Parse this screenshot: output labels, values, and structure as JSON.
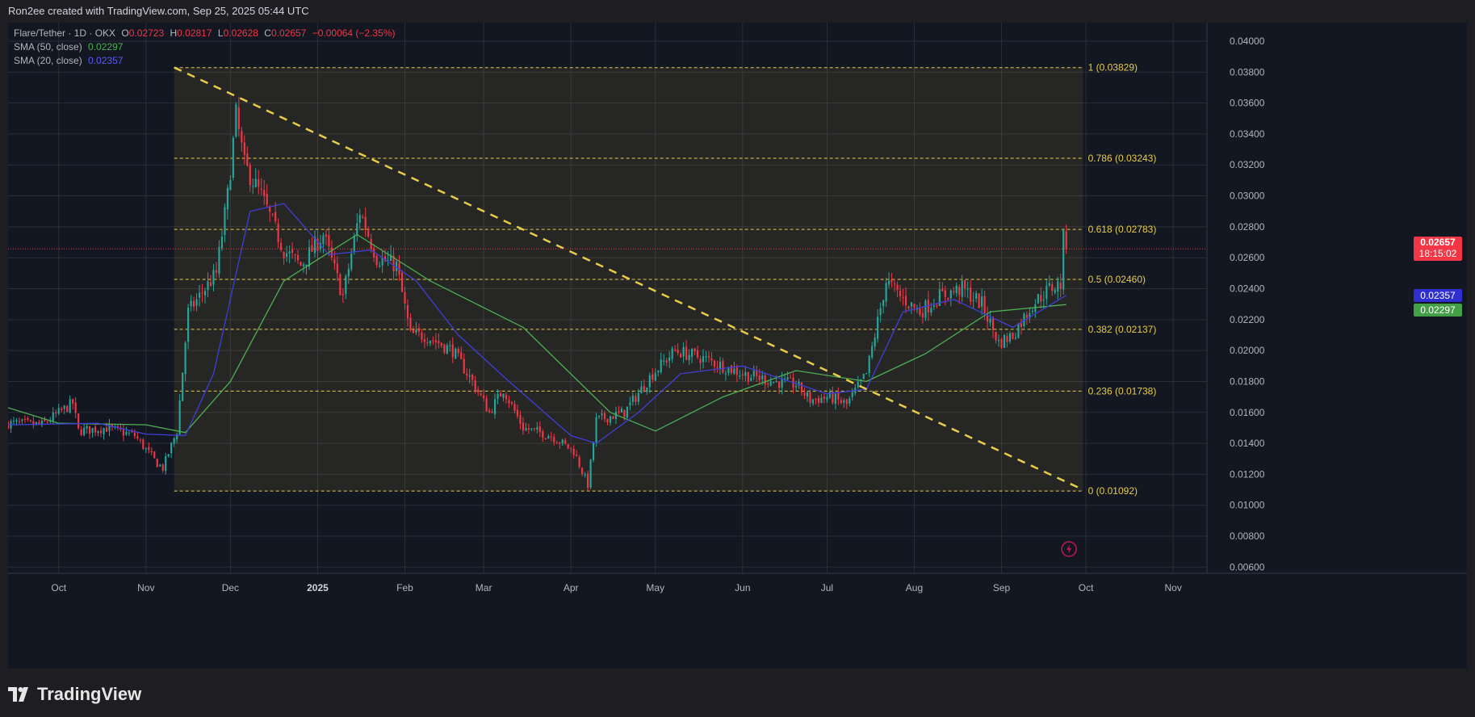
{
  "header": {
    "credit": "Ron2ee created with TradingView.com, Sep 25, 2025 05:44 UTC"
  },
  "legend": {
    "symbol": "Flare/Tether · 1D · OKX",
    "o_label": "O",
    "o": "0.02723",
    "h_label": "H",
    "h": "0.02817",
    "l_label": "L",
    "l": "0.02628",
    "c_label": "C",
    "c": "0.02657",
    "change": "−0.00064 (−2.35%)",
    "sma50_label": "SMA (50, close)",
    "sma50": "0.02297",
    "sma20_label": "SMA (20, close)",
    "sma20": "0.02357"
  },
  "price_tag": {
    "price": "0.02657",
    "countdown": "18:15:02"
  },
  "sma_tags": {
    "sma20": "0.02357",
    "sma50": "0.02297"
  },
  "footer": {
    "brand": "TradingView"
  },
  "colors": {
    "up": "#26a69a",
    "down": "#f23645",
    "sma20": "#3f3fd8",
    "sma50": "#4caf50",
    "fib": "#e8cc4a",
    "grid": "#2a2e39",
    "bg": "#131722",
    "text": "#b2b5be"
  },
  "chart_data": {
    "type": "candlestick",
    "title": "Flare/Tether · 1D · OKX",
    "ylim": [
      0.0056,
      0.0412
    ],
    "y_ticks": [
      "0.04000",
      "0.03800",
      "0.03600",
      "0.03400",
      "0.03200",
      "0.03000",
      "0.02800",
      "0.02600",
      "0.02400",
      "0.02200",
      "0.02000",
      "0.01800",
      "0.01600",
      "0.01400",
      "0.01200",
      "0.01000",
      "0.00800",
      "0.00600"
    ],
    "x_ticks": [
      "Oct",
      "Nov",
      "Dec",
      "2025",
      "Feb",
      "Mar",
      "Apr",
      "May",
      "Jun",
      "Jul",
      "Aug",
      "Sep",
      "Oct",
      "Nov"
    ],
    "xlim": [
      "2024-09-13",
      "2025-11-13"
    ],
    "fib_retracement": {
      "start_date": "2024-11-11",
      "end_date": "2025-09-30",
      "levels": [
        {
          "ratio": "1",
          "price": 0.03829,
          "label": "1 (0.03829)"
        },
        {
          "ratio": "0.786",
          "price": 0.03243,
          "label": "0.786 (0.03243)"
        },
        {
          "ratio": "0.618",
          "price": 0.02783,
          "label": "0.618 (0.02783)"
        },
        {
          "ratio": "0.5",
          "price": 0.0246,
          "label": "0.5 (0.02460)"
        },
        {
          "ratio": "0.382",
          "price": 0.02137,
          "label": "0.382 (0.02137)"
        },
        {
          "ratio": "0.236",
          "price": 0.01738,
          "label": "0.236 (0.01738)"
        },
        {
          "ratio": "0",
          "price": 0.01092,
          "label": "0 (0.01092)"
        }
      ]
    },
    "trendline": {
      "start": [
        "2024-11-11",
        0.0383
      ],
      "end": [
        "2025-09-30",
        0.011
      ]
    },
    "current_price": 0.02657,
    "price_path": [
      [
        "2024-09-13",
        0.0153
      ],
      [
        "2024-09-25",
        0.0152
      ],
      [
        "2024-10-06",
        0.0166
      ],
      [
        "2024-10-08",
        0.0148
      ],
      [
        "2024-10-18",
        0.015
      ],
      [
        "2024-10-28",
        0.0145
      ],
      [
        "2024-11-05",
        0.0127
      ],
      [
        "2024-11-07",
        0.0124
      ],
      [
        "2024-11-12",
        0.0148
      ],
      [
        "2024-11-16",
        0.0225
      ],
      [
        "2024-11-26",
        0.025
      ],
      [
        "2024-11-30",
        0.03
      ],
      [
        "2024-12-03",
        0.0352
      ],
      [
        "2024-12-06",
        0.032
      ],
      [
        "2024-12-12",
        0.03
      ],
      [
        "2024-12-20",
        0.0265
      ],
      [
        "2024-12-26",
        0.0255
      ],
      [
        "2025-01-03",
        0.0275
      ],
      [
        "2025-01-10",
        0.0235
      ],
      [
        "2025-01-16",
        0.029
      ],
      [
        "2025-01-22",
        0.026
      ],
      [
        "2025-01-29",
        0.0255
      ],
      [
        "2025-02-03",
        0.021
      ],
      [
        "2025-02-08",
        0.021
      ],
      [
        "2025-02-18",
        0.02
      ],
      [
        "2025-02-25",
        0.018
      ],
      [
        "2025-03-03",
        0.016
      ],
      [
        "2025-03-08",
        0.0175
      ],
      [
        "2025-03-15",
        0.015
      ],
      [
        "2025-03-25",
        0.0145
      ],
      [
        "2025-04-02",
        0.0135
      ],
      [
        "2025-04-07",
        0.0113
      ],
      [
        "2025-04-10",
        0.0155
      ],
      [
        "2025-04-20",
        0.016
      ],
      [
        "2025-04-30",
        0.0185
      ],
      [
        "2025-05-08",
        0.02
      ],
      [
        "2025-05-18",
        0.0195
      ],
      [
        "2025-06-01",
        0.0185
      ],
      [
        "2025-06-12",
        0.018
      ],
      [
        "2025-06-20",
        0.0178
      ],
      [
        "2025-06-25",
        0.0168
      ],
      [
        "2025-07-02",
        0.017
      ],
      [
        "2025-07-08",
        0.0165
      ],
      [
        "2025-07-15",
        0.0185
      ],
      [
        "2025-07-18",
        0.021
      ],
      [
        "2025-07-22",
        0.0245
      ],
      [
        "2025-07-27",
        0.0235
      ],
      [
        "2025-08-03",
        0.0225
      ],
      [
        "2025-08-10",
        0.0235
      ],
      [
        "2025-08-18",
        0.024
      ],
      [
        "2025-08-25",
        0.023
      ],
      [
        "2025-08-31",
        0.0205
      ],
      [
        "2025-09-05",
        0.021
      ],
      [
        "2025-09-12",
        0.023
      ],
      [
        "2025-09-18",
        0.024
      ],
      [
        "2025-09-22",
        0.0243
      ],
      [
        "2025-09-23",
        0.0272
      ],
      [
        "2025-09-24",
        0.0266
      ]
    ],
    "sma20_path": [
      [
        "2024-09-13",
        0.0152
      ],
      [
        "2024-10-15",
        0.0153
      ],
      [
        "2024-11-01",
        0.0146
      ],
      [
        "2024-11-15",
        0.0145
      ],
      [
        "2024-11-25",
        0.0185
      ],
      [
        "2024-12-08",
        0.029
      ],
      [
        "2024-12-20",
        0.0295
      ],
      [
        "2025-01-05",
        0.0262
      ],
      [
        "2025-01-20",
        0.0265
      ],
      [
        "2025-02-05",
        0.0245
      ],
      [
        "2025-02-20",
        0.021
      ],
      [
        "2025-03-10",
        0.018
      ],
      [
        "2025-04-01",
        0.0145
      ],
      [
        "2025-04-10",
        0.014
      ],
      [
        "2025-04-25",
        0.016
      ],
      [
        "2025-05-10",
        0.0185
      ],
      [
        "2025-06-01",
        0.019
      ],
      [
        "2025-07-01",
        0.0172
      ],
      [
        "2025-07-15",
        0.0175
      ],
      [
        "2025-07-28",
        0.0225
      ],
      [
        "2025-08-15",
        0.0233
      ],
      [
        "2025-09-05",
        0.0215
      ],
      [
        "2025-09-24",
        0.02357
      ]
    ],
    "sma50_path": [
      [
        "2024-09-13",
        0.0163
      ],
      [
        "2024-10-01",
        0.0153
      ],
      [
        "2024-11-01",
        0.0152
      ],
      [
        "2024-11-15",
        0.0147
      ],
      [
        "2024-12-01",
        0.018
      ],
      [
        "2024-12-20",
        0.0245
      ],
      [
        "2025-01-15",
        0.0275
      ],
      [
        "2025-02-10",
        0.0245
      ],
      [
        "2025-03-15",
        0.0215
      ],
      [
        "2025-04-15",
        0.016
      ],
      [
        "2025-05-01",
        0.0148
      ],
      [
        "2025-05-25",
        0.017
      ],
      [
        "2025-06-20",
        0.0187
      ],
      [
        "2025-07-15",
        0.018
      ],
      [
        "2025-08-05",
        0.0198
      ],
      [
        "2025-08-28",
        0.0225
      ],
      [
        "2025-09-24",
        0.02297
      ]
    ]
  }
}
